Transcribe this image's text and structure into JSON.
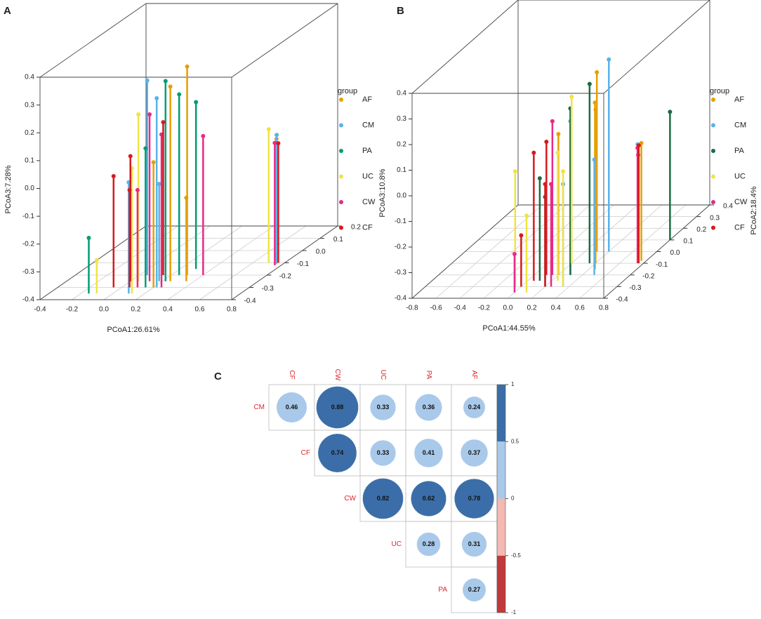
{
  "chart_data": [
    {
      "type": "scatter3d",
      "panel": "A",
      "xlabel": "PCoA1:26.61%",
      "ylabel": "PCoA3:7.28%",
      "legend_title": "group",
      "xlim": [
        -0.4,
        0.8
      ],
      "xticks": [
        -0.4,
        -0.2,
        {
          "value": 0,
          "label": "0.0"
        },
        0.2,
        0.4,
        0.6,
        0.8
      ],
      "ylim": [
        -0.4,
        0.4
      ],
      "yticks": [
        -0.4,
        -0.3,
        -0.2,
        -0.1,
        {
          "value": 0,
          "label": "0.0"
        },
        0.1,
        0.2,
        0.3,
        0.4
      ],
      "dlim": [
        -0.4,
        0.2
      ],
      "dticks": [
        -0.4,
        -0.3,
        -0.2,
        -0.1,
        {
          "value": 0,
          "label": "0.0"
        },
        0.1,
        0.2
      ],
      "series": [
        {
          "name": "AF",
          "color": "#e69f00",
          "x": [
            0.25,
            0.3,
            0.2,
            0.35,
            0.76
          ],
          "depth": [
            -0.25,
            -0.2,
            -0.3,
            -0.25,
            -0.11
          ],
          "values": [
            0.3,
            0.35,
            0.05,
            -0.1,
            0.05
          ]
        },
        {
          "name": "CM",
          "color": "#56b4e9",
          "x": [
            0.05,
            0.22,
            0.1,
            0.18,
            0.75
          ],
          "depth": [
            -0.2,
            -0.3,
            -0.35,
            -0.25,
            -0.1
          ],
          "values": [
            0.3,
            0.28,
            0.0,
            -0.05,
            0.06
          ]
        },
        {
          "name": "PA",
          "color": "#009e73",
          "x": [
            -0.15,
            0.15,
            0.25,
            0.22,
            0.3
          ],
          "depth": [
            -0.35,
            -0.3,
            -0.2,
            -0.25,
            -0.15
          ],
          "values": [
            -0.2,
            0.1,
            0.25,
            0.32,
            0.2
          ]
        },
        {
          "name": "UC",
          "color": "#f0e442",
          "x": [
            -0.1,
            0.05,
            0.1,
            0.12,
            0.7
          ],
          "depth": [
            -0.35,
            -0.25,
            -0.3,
            -0.35,
            -0.1
          ],
          "values": [
            -0.28,
            0.2,
            -0.05,
            0.05,
            0.08
          ]
        },
        {
          "name": "CW",
          "color": "#e7298a",
          "x": [
            0.12,
            0.1,
            0.25,
            0.4,
            0.76
          ],
          "depth": [
            -0.25,
            -0.3,
            -0.3,
            -0.2,
            -0.12
          ],
          "values": [
            0.2,
            -0.05,
            0.15,
            0.1,
            0.04
          ]
        },
        {
          "name": "CF",
          "color": "#d7191c",
          "x": [
            -0.05,
            0.0,
            0.05,
            0.15,
            0.76
          ],
          "depth": [
            -0.3,
            -0.25,
            -0.3,
            -0.2,
            -0.1
          ],
          "values": [
            0.0,
            0.05,
            -0.05,
            0.15,
            0.03
          ]
        }
      ]
    },
    {
      "type": "scatter3d",
      "panel": "B",
      "xlabel": "PCoA1:44.55%",
      "ylabel": "PCoA3:10.8%",
      "dlabel": "PCoA2:18.4%",
      "legend_title": "group",
      "xlim": [
        -0.8,
        0.8
      ],
      "xticks": [
        -0.8,
        -0.6,
        -0.4,
        -0.2,
        {
          "value": 0,
          "label": "0.0"
        },
        0.2,
        0.4,
        0.6,
        0.8
      ],
      "ylim": [
        -0.4,
        0.4
      ],
      "yticks": [
        -0.4,
        -0.3,
        -0.2,
        -0.1,
        {
          "value": 0,
          "label": "0.0"
        },
        0.1,
        0.2,
        0.3,
        0.4
      ],
      "dlim": [
        -0.4,
        0.4
      ],
      "dticks": [
        -0.4,
        -0.3,
        -0.2,
        -0.1,
        {
          "value": 0,
          "label": "0.0"
        },
        0.1,
        0.2,
        0.3,
        0.4
      ],
      "series": [
        {
          "name": "AF",
          "color": "#e69f00",
          "x": [
            0.4,
            0.45,
            0.2,
            0.3,
            0.76
          ],
          "depth": [
            -0.1,
            -0.15,
            -0.2,
            0.0,
            -0.08
          ],
          "values": [
            0.2,
            0.25,
            0.15,
            0.3,
            0.06
          ]
        },
        {
          "name": "CM",
          "color": "#56b4e9",
          "x": [
            0.4,
            0.3,
            0.35,
            0.5,
            0.74
          ],
          "depth": [
            0.0,
            -0.2,
            -0.3,
            -0.2,
            -0.09
          ],
          "values": [
            0.35,
            0.2,
            0.0,
            0.05,
            0.06
          ]
        },
        {
          "name": "PA",
          "color": "#1b6b45",
          "x": [
            0.2,
            0.35,
            0.8,
            0.1,
            0.3
          ],
          "depth": [
            -0.3,
            -0.1,
            0.1,
            -0.25,
            -0.2
          ],
          "values": [
            -0.05,
            0.3,
            0.1,
            0.0,
            0.25
          ]
        },
        {
          "name": "UC",
          "color": "#f0e442",
          "x": [
            -0.05,
            0.2,
            0.25,
            0.1,
            0.35
          ],
          "depth": [
            -0.3,
            -0.1,
            -0.25,
            -0.35,
            -0.3
          ],
          "values": [
            0.05,
            0.25,
            0.1,
            -0.1,
            0.05
          ]
        },
        {
          "name": "CW",
          "color": "#e7298a",
          "x": [
            0.15,
            0.0,
            0.25,
            0.7,
            0.75
          ],
          "depth": [
            -0.2,
            -0.35,
            -0.3,
            -0.05,
            -0.1
          ],
          "values": [
            0.2,
            -0.25,
            0.0,
            0.0,
            0.05
          ]
        },
        {
          "name": "CF",
          "color": "#d7191c",
          "x": [
            0.0,
            0.05,
            0.1,
            0.2,
            0.76
          ],
          "depth": [
            -0.3,
            -0.25,
            -0.2,
            -0.3,
            -0.1
          ],
          "values": [
            -0.2,
            0.1,
            0.12,
            0.0,
            0.06
          ]
        }
      ]
    },
    {
      "type": "corrplot",
      "panel": "C",
      "rows": [
        "CM",
        "CF",
        "CW",
        "UC",
        "PA"
      ],
      "columns": [
        "CF",
        "CW",
        "UC",
        "PA",
        "AF"
      ],
      "values": [
        [
          0.46,
          0.88,
          0.33,
          0.36,
          0.24
        ],
        [
          null,
          0.74,
          0.33,
          0.41,
          0.37
        ],
        [
          null,
          null,
          0.82,
          0.62,
          0.78
        ],
        [
          null,
          null,
          null,
          0.28,
          0.31
        ],
        [
          null,
          null,
          null,
          null,
          0.27
        ]
      ],
      "colorbar": {
        "ticks": [
          1,
          0.5,
          0,
          -0.5,
          -1
        ],
        "colors": [
          "#3b6ea8",
          "#a9c9ea",
          "#f4b9b2",
          "#c0393b"
        ]
      }
    }
  ]
}
